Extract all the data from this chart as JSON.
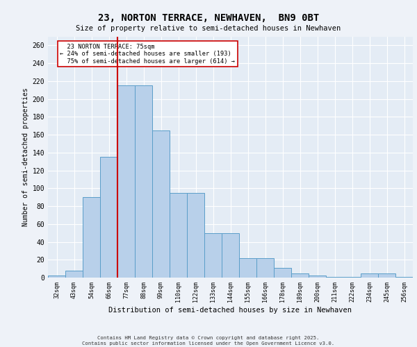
{
  "title1": "23, NORTON TERRACE, NEWHAVEN,  BN9 0BT",
  "title2": "Size of property relative to semi-detached houses in Newhaven",
  "xlabel": "Distribution of semi-detached houses by size in Newhaven",
  "ylabel": "Number of semi-detached properties",
  "footer1": "Contains HM Land Registry data © Crown copyright and database right 2025.",
  "footer2": "Contains public sector information licensed under the Open Government Licence v3.0.",
  "categories": [
    "32sqm",
    "43sqm",
    "54sqm",
    "66sqm",
    "77sqm",
    "88sqm",
    "99sqm",
    "110sqm",
    "122sqm",
    "133sqm",
    "144sqm",
    "155sqm",
    "166sqm",
    "178sqm",
    "189sqm",
    "200sqm",
    "211sqm",
    "222sqm",
    "234sqm",
    "245sqm",
    "256sqm"
  ],
  "values": [
    2,
    8,
    90,
    135,
    215,
    215,
    165,
    95,
    95,
    50,
    50,
    22,
    22,
    11,
    5,
    2,
    1,
    1,
    5,
    5,
    1
  ],
  "bar_color": "#b8d0ea",
  "bar_edge_color": "#5a9ec9",
  "line_color": "#cc0000",
  "annotation_box_color": "#cc0000",
  "property_label": "23 NORTON TERRACE: 75sqm",
  "pct_smaller": 24,
  "n_smaller": 193,
  "pct_larger": 75,
  "n_larger": 614,
  "ylim": [
    0,
    270
  ],
  "yticks": [
    0,
    20,
    40,
    60,
    80,
    100,
    120,
    140,
    160,
    180,
    200,
    220,
    240,
    260
  ],
  "bg_color": "#eef2f8",
  "plot_bg": "#e4ecf5",
  "grid_color": "#ffffff",
  "vline_x_index": 3.5
}
